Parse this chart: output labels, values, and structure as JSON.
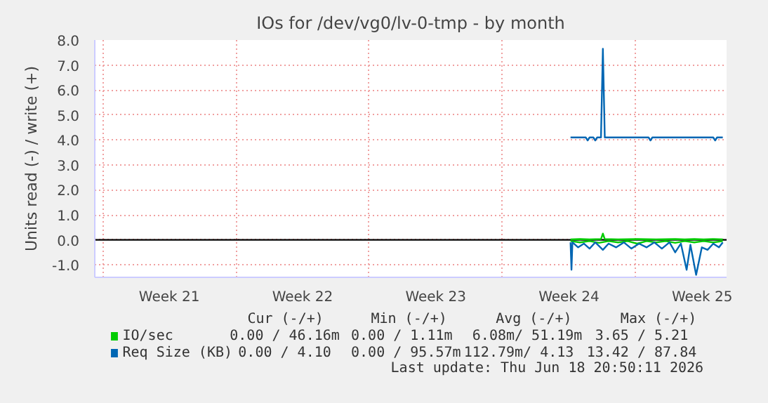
{
  "chart_data": {
    "type": "line",
    "title": "IOs for /dev/vg0/lv-0-tmp - by month",
    "ylabel": "Units read (-) / write (+)",
    "xlim": [
      "2026-05-17T14:00",
      "2026-06-19T18:48"
    ],
    "ylim": [
      -1.5,
      8.0
    ],
    "xticks": [
      {
        "value": "2026-05-18T00:00",
        "label": null
      },
      {
        "value": "2026-05-25T00:00",
        "label": null
      },
      {
        "value": "2026-06-01T00:00",
        "label": null
      },
      {
        "value": "2026-06-08T00:00",
        "label": null
      },
      {
        "value": "2026-06-15T00:00",
        "label": null
      },
      {
        "value": "2026-05-21T12:00",
        "label": "Week 21"
      },
      {
        "value": "2026-05-28T12:00",
        "label": "Week 22"
      },
      {
        "value": "2026-06-04T12:00",
        "label": "Week 23"
      },
      {
        "value": "2026-06-11T12:00",
        "label": "Week 24"
      },
      {
        "value": "2026-06-18T12:00",
        "label": "Week 25"
      }
    ],
    "yticks": [
      {
        "value": -1,
        "label": "-1.0"
      },
      {
        "value": 0,
        "label": "0.0"
      },
      {
        "value": 1,
        "label": "1.0"
      },
      {
        "value": 2,
        "label": "2.0"
      },
      {
        "value": 3,
        "label": "3.0"
      },
      {
        "value": 4,
        "label": "4.0"
      },
      {
        "value": 5,
        "label": "5.0"
      },
      {
        "value": 6,
        "label": "6.0"
      },
      {
        "value": 7,
        "label": "7.0"
      },
      {
        "value": 8,
        "label": "8.0"
      }
    ],
    "grid": true,
    "legend": "bottom",
    "ref_lines": [
      {
        "axis": "y",
        "value": 0,
        "color": "#000000"
      }
    ],
    "series": [
      {
        "name": "IO/sec",
        "color": "#00cc00",
        "x": [
          "2026-06-11T14:00",
          "2026-06-12T02:00",
          "2026-06-12T14:00",
          "2026-06-13T04:24",
          "2026-06-13T06:48",
          "2026-06-13T09:12",
          "2026-06-14T02:00",
          "2026-06-15T02:00",
          "2026-06-16T02:00",
          "2026-06-17T02:00",
          "2026-06-17T14:00",
          "2026-06-18T02:00",
          "2026-06-18T14:00",
          "2026-06-19T02:00",
          "2026-06-19T14:00"
        ],
        "values": [
          0.02,
          0.03,
          0.02,
          0.03,
          0.25,
          0.03,
          0.02,
          0.03,
          0.02,
          0.03,
          0.02,
          0.03,
          0.02,
          0.03,
          0.02
        ]
      },
      {
        "color": "#00cc00",
        "x": [
          "2026-06-11T14:00",
          "2026-06-12T02:00",
          "2026-06-12T14:00",
          "2026-06-13T02:00",
          "2026-06-13T14:00",
          "2026-06-14T02:00",
          "2026-06-14T14:00",
          "2026-06-15T02:00",
          "2026-06-15T14:00",
          "2026-06-16T02:00",
          "2026-06-16T14:00",
          "2026-06-17T02:00",
          "2026-06-17T14:00",
          "2026-06-18T02:00",
          "2026-06-18T14:00",
          "2026-06-19T02:00",
          "2026-06-19T14:00"
        ],
        "values": [
          -0.05,
          -0.1,
          -0.05,
          -0.12,
          -0.05,
          -0.1,
          -0.05,
          -0.15,
          -0.05,
          -0.1,
          -0.05,
          -0.12,
          -0.05,
          -0.1,
          -0.05,
          -0.1,
          -0.05
        ]
      },
      {
        "name": "Req Size (KB)",
        "color": "#0066b3",
        "x": [
          "2026-06-11T14:00",
          "2026-06-12T09:12",
          "2026-06-12T11:36",
          "2026-06-12T14:00",
          "2026-06-12T18:48",
          "2026-06-12T21:12",
          "2026-06-12T23:36",
          "2026-06-13T04:24",
          "2026-06-13T06:48",
          "2026-06-13T09:12",
          "2026-06-15T16:24",
          "2026-06-15T18:48",
          "2026-06-15T21:12",
          "2026-06-19T02:00",
          "2026-06-19T04:24",
          "2026-06-19T06:48",
          "2026-06-19T14:00"
        ],
        "values": [
          4.1,
          4.1,
          3.98,
          4.1,
          4.1,
          3.98,
          4.1,
          4.1,
          7.65,
          4.1,
          4.1,
          3.98,
          4.1,
          4.1,
          3.98,
          4.1,
          4.1
        ]
      },
      {
        "color": "#0066b3",
        "x": [
          "2026-06-11T14:00",
          "2026-06-11T15:12",
          "2026-06-11T16:24",
          "2026-06-11T23:36",
          "2026-06-12T06:48",
          "2026-06-12T14:00",
          "2026-06-12T21:12",
          "2026-06-13T06:48",
          "2026-06-13T14:00",
          "2026-06-13T23:36",
          "2026-06-14T09:12",
          "2026-06-14T18:48",
          "2026-06-15T04:24",
          "2026-06-15T14:00",
          "2026-06-15T23:36",
          "2026-06-16T09:12",
          "2026-06-16T18:48",
          "2026-06-17T02:00",
          "2026-06-17T09:12",
          "2026-06-17T16:24",
          "2026-06-17T21:12",
          "2026-06-18T04:24",
          "2026-06-18T11:36",
          "2026-06-18T18:48",
          "2026-06-19T02:00",
          "2026-06-19T09:12",
          "2026-06-19T14:00"
        ],
        "values": [
          -0.1,
          -1.2,
          -0.1,
          -0.3,
          -0.15,
          -0.35,
          -0.1,
          -0.4,
          -0.15,
          -0.3,
          -0.1,
          -0.35,
          -0.15,
          -0.3,
          -0.1,
          -0.35,
          -0.1,
          -0.5,
          -0.15,
          -1.2,
          -0.2,
          -1.4,
          -0.3,
          -0.4,
          -0.15,
          -0.3,
          -0.1
        ]
      }
    ],
    "annotations": [
      "Cur (-/+)",
      "Min (-/+)",
      "Avg (-/+)",
      "Max (-/+)",
      "0.00 / 46.16m",
      "0.00 /  1.11m",
      "6.08m/ 51.19m",
      "3.65 /  5.21",
      "0.00 /  4.10",
      "0.00 / 95.57m",
      "112.79m/  4.13",
      "13.42 / 87.84",
      "Last update: Thu Jun 18 20:50:11 2026"
    ]
  }
}
